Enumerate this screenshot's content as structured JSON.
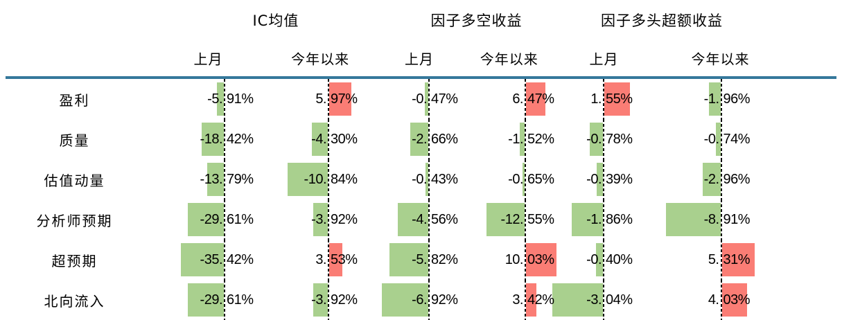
{
  "table": {
    "group_headers": [
      {
        "label": "IC均值"
      },
      {
        "label": "因子多空收益"
      },
      {
        "label": "因子多头超额收益"
      }
    ],
    "sub_headers": [
      "上月",
      "今年以来",
      "上月",
      "今年以来",
      "上月",
      "今年以来"
    ],
    "rows": [
      {
        "label": "盈利",
        "values": [
          "-5.91%",
          "5.97%",
          "-0.47%",
          "6.47%",
          "1.55%",
          "-1.96%"
        ]
      },
      {
        "label": "质量",
        "values": [
          "-18.42%",
          "-4.30%",
          "-2.66%",
          "-1.52%",
          "-0.78%",
          "-0.74%"
        ]
      },
      {
        "label": "估值动量",
        "values": [
          "-13.79%",
          "-10.84%",
          "-0.43%",
          "-0.65%",
          "-0.39%",
          "-2.96%"
        ]
      },
      {
        "label": "分析师预期",
        "values": [
          "-29.61%",
          "-3.92%",
          "-4.56%",
          "-12.55%",
          "-1.86%",
          "-8.91%"
        ]
      },
      {
        "label": "超预期",
        "values": [
          "-35.42%",
          "3.53%",
          "-5.82%",
          "10.03%",
          "-0.40%",
          "5.31%"
        ]
      },
      {
        "label": "北向流入",
        "values": [
          "-29.61%",
          "-3.92%",
          "-6.92%",
          "3.42%",
          "-3.04%",
          "4.03%"
        ]
      }
    ],
    "colors": {
      "negative_bar": "#A9D08E",
      "positive_bar": "#FA7D75",
      "header_rule": "#35789B",
      "zero_axis": "#000000"
    }
  },
  "chart_data": {
    "type": "table",
    "column_groups": [
      {
        "label": "IC均值",
        "columns": [
          "上月",
          "今年以来"
        ]
      },
      {
        "label": "因子多空收益",
        "columns": [
          "上月",
          "今年以来"
        ]
      },
      {
        "label": "因子多头超额收益",
        "columns": [
          "上月",
          "今年以来"
        ]
      }
    ],
    "row_labels": [
      "盈利",
      "质量",
      "估值动量",
      "分析师预期",
      "超预期",
      "北向流入"
    ],
    "values_pct": [
      [
        -5.91,
        5.97,
        -0.47,
        6.47,
        1.55,
        -1.96
      ],
      [
        -18.42,
        -4.3,
        -2.66,
        -1.52,
        -0.78,
        -0.74
      ],
      [
        -13.79,
        -10.84,
        -0.43,
        -0.65,
        -0.39,
        -2.96
      ],
      [
        -29.61,
        -3.92,
        -4.56,
        -12.55,
        -1.86,
        -8.91
      ],
      [
        -35.42,
        3.53,
        -5.82,
        10.03,
        -0.4,
        5.31
      ],
      [
        -29.61,
        -3.92,
        -6.92,
        3.42,
        -3.04,
        4.03
      ]
    ],
    "layout": {
      "bar_style": "in-cell data bars",
      "negative_bars": "green, extend left of dashed zero axis",
      "positive_bars": "red, extend right of dashed zero axis",
      "zero_axis": "black dashed vertical line per column",
      "grid": false,
      "legend": false
    }
  }
}
